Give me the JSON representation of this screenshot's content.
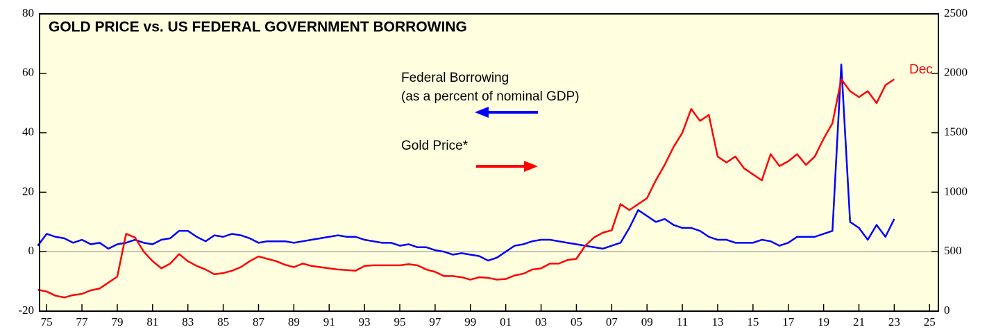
{
  "chart_data": {
    "type": "line",
    "title": "GOLD PRICE vs. US FEDERAL GOVERNMENT BORROWING",
    "annotations": [
      "Federal Borrowing",
      "(as a percent of nominal GDP)",
      "Gold Price*",
      "Dec"
    ],
    "x": [
      1975.0,
      1975.5,
      1976.0,
      1976.5,
      1977.0,
      1977.5,
      1978.0,
      1978.5,
      1979.0,
      1979.5,
      1980.0,
      1980.5,
      1981.0,
      1981.5,
      1982.0,
      1982.5,
      1983.0,
      1983.5,
      1984.0,
      1984.5,
      1985.0,
      1985.5,
      1986.0,
      1986.5,
      1987.0,
      1987.5,
      1988.0,
      1988.5,
      1989.0,
      1989.5,
      1990.0,
      1990.5,
      1991.0,
      1991.5,
      1992.0,
      1992.5,
      1993.0,
      1993.5,
      1994.0,
      1994.5,
      1995.0,
      1995.5,
      1996.0,
      1996.5,
      1997.0,
      1997.5,
      1998.0,
      1998.5,
      1999.0,
      1999.5,
      2000.0,
      2000.5,
      2001.0,
      2001.5,
      2002.0,
      2002.5,
      2003.0,
      2003.5,
      2004.0,
      2004.5,
      2005.0,
      2005.5,
      2006.0,
      2006.5,
      2007.0,
      2007.5,
      2008.0,
      2008.5,
      2009.0,
      2009.5,
      2010.0,
      2010.5,
      2011.0,
      2011.5,
      2012.0,
      2012.5,
      2013.0,
      2013.5,
      2014.0,
      2014.5,
      2015.0,
      2015.5,
      2016.0,
      2016.5,
      2017.0,
      2017.5,
      2018.0,
      2018.5,
      2019.0,
      2019.5,
      2020.0,
      2020.5,
      2021.0,
      2021.5,
      2022.0,
      2022.5,
      2023.0,
      2023.5
    ],
    "series": [
      {
        "name": "Federal Borrowing",
        "color": "#0000ff",
        "axis": "y",
        "values": [
          2,
          6,
          5,
          4.5,
          3,
          4,
          2.5,
          3,
          1,
          2.5,
          3,
          4,
          3,
          2.5,
          4,
          4.5,
          7,
          7,
          5,
          3.5,
          5.5,
          5,
          6,
          5.5,
          4.5,
          3,
          3.5,
          3.5,
          3.5,
          3,
          3.5,
          4,
          4.5,
          5,
          5.5,
          5,
          5,
          4,
          3.5,
          3,
          3,
          2,
          2.5,
          1.5,
          1.5,
          0.5,
          0,
          -1,
          -0.5,
          -1,
          -1.5,
          -3,
          -2,
          0,
          2,
          2.5,
          3.5,
          4,
          4,
          3.5,
          3,
          2.5,
          2,
          1.5,
          1,
          2,
          3,
          8,
          14,
          12,
          10,
          11,
          9,
          8,
          8,
          7,
          5,
          4,
          4,
          3,
          3,
          3,
          4,
          3.5,
          2,
          3,
          5,
          5,
          5,
          6,
          7,
          63,
          10,
          8,
          4,
          9,
          5,
          11
        ]
      },
      {
        "name": "Gold Price*",
        "color": "#ff0000",
        "axis": "y2",
        "values": [
          180,
          165,
          130,
          115,
          135,
          145,
          175,
          190,
          240,
          290,
          650,
          620,
          500,
          420,
          360,
          400,
          480,
          420,
          380,
          350,
          310,
          320,
          340,
          370,
          420,
          460,
          440,
          420,
          390,
          370,
          400,
          380,
          370,
          360,
          350,
          345,
          340,
          380,
          385,
          385,
          385,
          385,
          395,
          385,
          350,
          330,
          295,
          295,
          285,
          265,
          285,
          280,
          265,
          270,
          300,
          315,
          350,
          360,
          400,
          400,
          430,
          440,
          550,
          620,
          660,
          680,
          900,
          850,
          900,
          950,
          1100,
          1230,
          1380,
          1500,
          1700,
          1600,
          1650,
          1300,
          1250,
          1300,
          1200,
          1150,
          1100,
          1320,
          1220,
          1260,
          1320,
          1230,
          1300,
          1450,
          1580,
          1950,
          1850,
          1800,
          1850,
          1750,
          1900,
          1950
        ]
      }
    ],
    "xlim": [
      1975.1,
      2026.0
    ],
    "xticks": [
      {
        "value": 1975.5,
        "label": "75"
      },
      {
        "value": 1977.5,
        "label": "77"
      },
      {
        "value": 1979.5,
        "label": "79"
      },
      {
        "value": 1981.5,
        "label": "81"
      },
      {
        "value": 1983.5,
        "label": "83"
      },
      {
        "value": 1985.5,
        "label": "85"
      },
      {
        "value": 1987.5,
        "label": "87"
      },
      {
        "value": 1989.5,
        "label": "89"
      },
      {
        "value": 1991.5,
        "label": "91"
      },
      {
        "value": 1993.5,
        "label": "93"
      },
      {
        "value": 1995.5,
        "label": "95"
      },
      {
        "value": 1997.5,
        "label": "97"
      },
      {
        "value": 1999.5,
        "label": "99"
      },
      {
        "value": 2001.5,
        "label": "01"
      },
      {
        "value": 2003.5,
        "label": "03"
      },
      {
        "value": 2005.5,
        "label": "05"
      },
      {
        "value": 2007.5,
        "label": "07"
      },
      {
        "value": 2009.5,
        "label": "09"
      },
      {
        "value": 2011.5,
        "label": "11"
      },
      {
        "value": 2013.5,
        "label": "13"
      },
      {
        "value": 2015.5,
        "label": "15"
      },
      {
        "value": 2017.5,
        "label": "17"
      },
      {
        "value": 2019.5,
        "label": "19"
      },
      {
        "value": 2021.5,
        "label": "21"
      },
      {
        "value": 2023.5,
        "label": "23"
      },
      {
        "value": 2025.5,
        "label": "25"
      }
    ],
    "ylim": [
      -20,
      80
    ],
    "yticks": [
      -20,
      0,
      20,
      40,
      60,
      80
    ],
    "y2lim": [
      0,
      2500
    ],
    "y2ticks": [
      0,
      500,
      1000,
      1500,
      2000,
      2500
    ],
    "zero_line": true,
    "background": "#ffffe0"
  }
}
